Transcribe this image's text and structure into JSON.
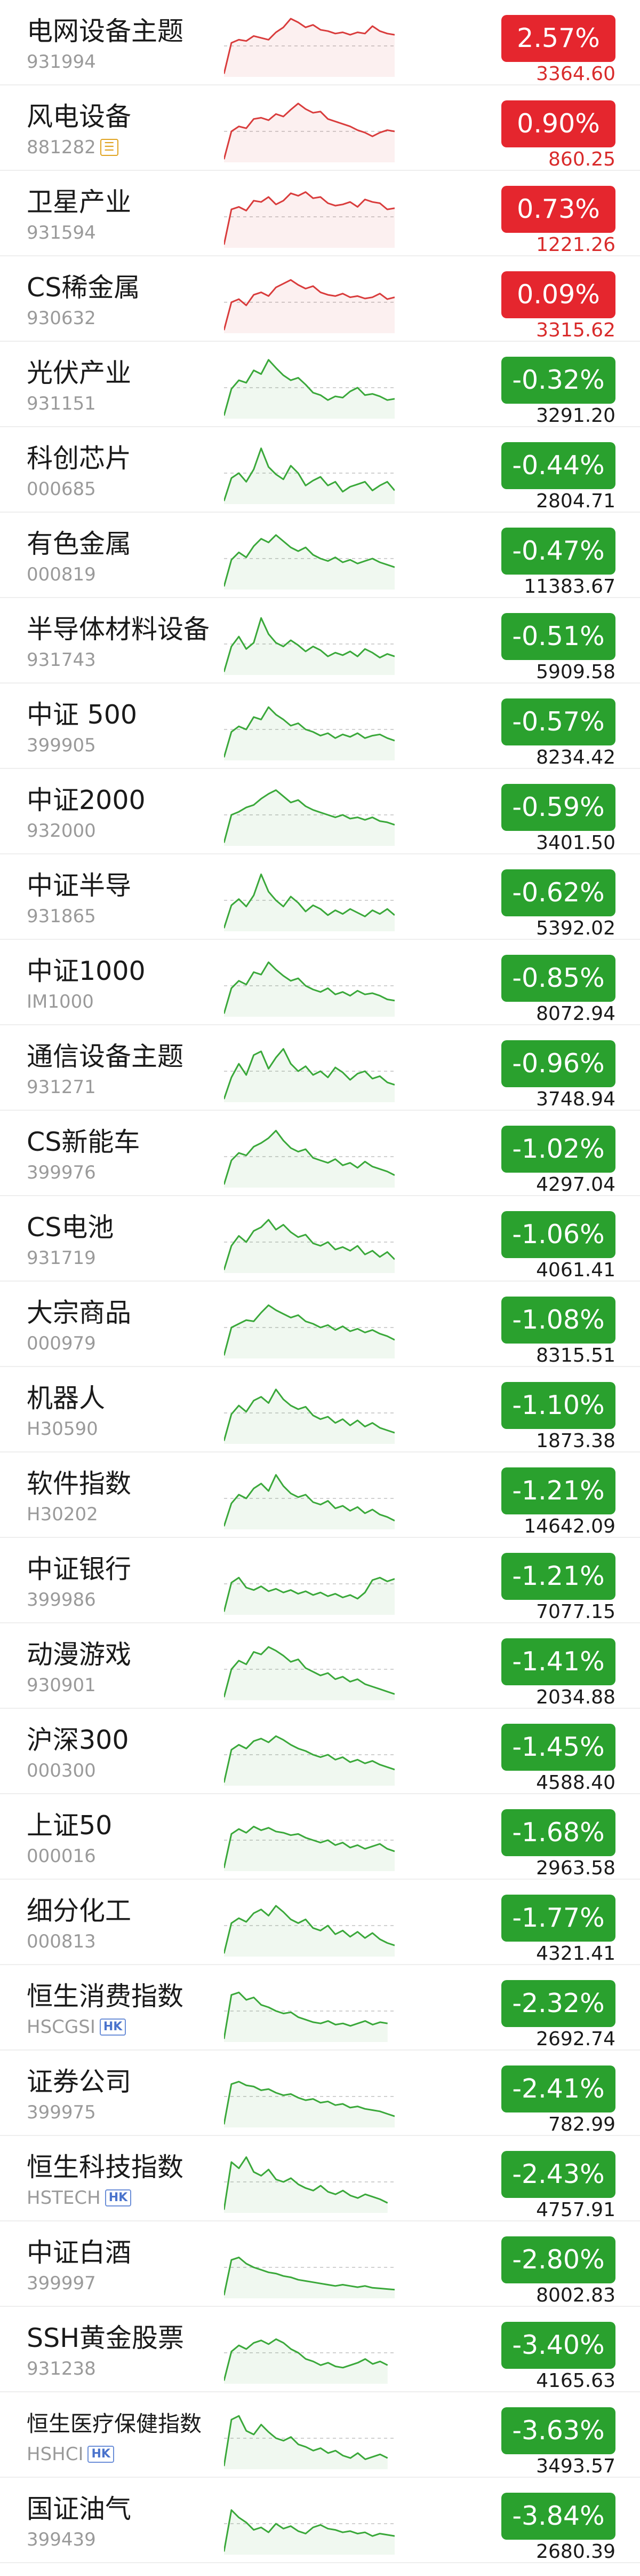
{
  "colors": {
    "up": "#e5262e",
    "down": "#2aa12e",
    "up_line": "#d93c3c",
    "down_line": "#3aa83a",
    "reference_line": "#d0d0d0"
  },
  "rows": [
    {
      "name": "电网设备主题",
      "code": "931994",
      "change": "2.57%",
      "price": "3364.60",
      "trend": "up",
      "series": [
        0.05,
        0.55,
        0.6,
        0.58,
        0.66,
        0.63,
        0.6,
        0.72,
        0.8,
        0.94,
        0.88,
        0.8,
        0.84,
        0.76,
        0.74,
        0.7,
        0.72,
        0.68,
        0.72,
        0.7,
        0.82,
        0.74,
        0.7,
        0.68
      ]
    },
    {
      "name": "风电设备",
      "code": "881282",
      "code_tag": "note-icon",
      "change": "0.90%",
      "price": "860.25",
      "trend": "up",
      "series": [
        0.05,
        0.5,
        0.58,
        0.55,
        0.7,
        0.72,
        0.68,
        0.78,
        0.74,
        0.85,
        0.95,
        0.86,
        0.8,
        0.82,
        0.7,
        0.66,
        0.62,
        0.58,
        0.52,
        0.48,
        0.42,
        0.48,
        0.52,
        0.5
      ]
    },
    {
      "name": "卫星产业",
      "code": "931594",
      "change": "0.73%",
      "price": "1221.26",
      "trend": "up",
      "series": [
        0.05,
        0.62,
        0.66,
        0.6,
        0.76,
        0.74,
        0.82,
        0.7,
        0.76,
        0.88,
        0.84,
        0.9,
        0.8,
        0.82,
        0.72,
        0.68,
        0.7,
        0.74,
        0.66,
        0.78,
        0.74,
        0.72,
        0.62,
        0.64
      ]
    },
    {
      "name": "CS稀金属",
      "code": "930632",
      "change": "0.09%",
      "price": "3315.62",
      "trend": "up",
      "series": [
        0.05,
        0.5,
        0.55,
        0.45,
        0.62,
        0.66,
        0.6,
        0.74,
        0.8,
        0.86,
        0.78,
        0.72,
        0.76,
        0.66,
        0.62,
        0.6,
        0.64,
        0.58,
        0.6,
        0.56,
        0.58,
        0.64,
        0.55,
        0.58
      ]
    },
    {
      "name": "光伏产业",
      "code": "931151",
      "change": "-0.32%",
      "price": "3291.20",
      "trend": "down",
      "series": [
        0.05,
        0.48,
        0.62,
        0.58,
        0.78,
        0.72,
        0.95,
        0.82,
        0.7,
        0.62,
        0.66,
        0.55,
        0.42,
        0.38,
        0.3,
        0.36,
        0.34,
        0.44,
        0.5,
        0.38,
        0.4,
        0.36,
        0.3,
        0.32
      ]
    },
    {
      "name": "科创芯片",
      "code": "000685",
      "change": "-0.44%",
      "price": "2804.71",
      "trend": "down",
      "series": [
        0.05,
        0.42,
        0.5,
        0.36,
        0.56,
        0.9,
        0.6,
        0.48,
        0.4,
        0.62,
        0.5,
        0.3,
        0.38,
        0.44,
        0.3,
        0.36,
        0.2,
        0.28,
        0.32,
        0.36,
        0.22,
        0.3,
        0.36,
        0.22
      ]
    },
    {
      "name": "有色金属",
      "code": "000819",
      "change": "-0.47%",
      "price": "11383.67",
      "trend": "down",
      "series": [
        0.05,
        0.48,
        0.6,
        0.52,
        0.7,
        0.82,
        0.76,
        0.88,
        0.78,
        0.68,
        0.62,
        0.68,
        0.56,
        0.5,
        0.46,
        0.52,
        0.44,
        0.48,
        0.42,
        0.46,
        0.5,
        0.44,
        0.4,
        0.36
      ]
    },
    {
      "name": "半导体材料设备",
      "code": "931743",
      "change": "-0.51%",
      "price": "5909.58",
      "trend": "down",
      "series": [
        0.05,
        0.46,
        0.62,
        0.42,
        0.52,
        0.92,
        0.66,
        0.52,
        0.46,
        0.56,
        0.48,
        0.38,
        0.46,
        0.4,
        0.3,
        0.36,
        0.32,
        0.38,
        0.3,
        0.42,
        0.36,
        0.28,
        0.34,
        0.3
      ]
    },
    {
      "name": "中证 500",
      "code": "399905",
      "change": "-0.57%",
      "price": "8234.42",
      "trend": "down",
      "series": [
        0.05,
        0.46,
        0.55,
        0.5,
        0.7,
        0.66,
        0.86,
        0.74,
        0.66,
        0.56,
        0.6,
        0.5,
        0.46,
        0.4,
        0.44,
        0.36,
        0.42,
        0.38,
        0.44,
        0.36,
        0.4,
        0.42,
        0.36,
        0.32
      ]
    },
    {
      "name": "中证2000",
      "code": "932000",
      "change": "-0.59%",
      "price": "3401.50",
      "trend": "down",
      "series": [
        0.05,
        0.5,
        0.55,
        0.62,
        0.66,
        0.76,
        0.84,
        0.9,
        0.8,
        0.7,
        0.74,
        0.64,
        0.58,
        0.54,
        0.5,
        0.46,
        0.5,
        0.44,
        0.46,
        0.42,
        0.46,
        0.4,
        0.38,
        0.34
      ]
    },
    {
      "name": "中证半导",
      "code": "931865",
      "change": "-0.62%",
      "price": "5392.02",
      "trend": "down",
      "series": [
        0.05,
        0.42,
        0.52,
        0.4,
        0.58,
        0.92,
        0.64,
        0.5,
        0.4,
        0.56,
        0.46,
        0.32,
        0.42,
        0.36,
        0.26,
        0.34,
        0.28,
        0.36,
        0.3,
        0.24,
        0.34,
        0.28,
        0.36,
        0.26
      ]
    },
    {
      "name": "中证1000",
      "code": "IM1000",
      "change": "-0.85%",
      "price": "8072.94",
      "trend": "down",
      "series": [
        0.05,
        0.46,
        0.58,
        0.52,
        0.72,
        0.68,
        0.88,
        0.76,
        0.66,
        0.58,
        0.62,
        0.5,
        0.44,
        0.4,
        0.46,
        0.36,
        0.4,
        0.34,
        0.42,
        0.36,
        0.38,
        0.34,
        0.28,
        0.26
      ]
    },
    {
      "name": "通信设备主题",
      "code": "931271",
      "change": "-0.96%",
      "price": "3748.94",
      "trend": "down",
      "series": [
        0.05,
        0.4,
        0.62,
        0.44,
        0.76,
        0.82,
        0.54,
        0.72,
        0.86,
        0.62,
        0.5,
        0.58,
        0.44,
        0.5,
        0.4,
        0.56,
        0.48,
        0.36,
        0.46,
        0.5,
        0.38,
        0.42,
        0.32,
        0.28
      ]
    },
    {
      "name": "CS新能车",
      "code": "399976",
      "change": "-1.02%",
      "price": "4297.04",
      "trend": "down",
      "series": [
        0.05,
        0.44,
        0.56,
        0.52,
        0.66,
        0.72,
        0.8,
        0.92,
        0.76,
        0.64,
        0.58,
        0.62,
        0.48,
        0.44,
        0.4,
        0.46,
        0.36,
        0.4,
        0.32,
        0.42,
        0.34,
        0.3,
        0.26,
        0.2
      ]
    },
    {
      "name": "CS电池",
      "code": "931719",
      "change": "-1.06%",
      "price": "4061.41",
      "trend": "down",
      "series": [
        0.05,
        0.44,
        0.6,
        0.5,
        0.68,
        0.74,
        0.86,
        0.7,
        0.78,
        0.66,
        0.58,
        0.62,
        0.48,
        0.44,
        0.5,
        0.38,
        0.42,
        0.36,
        0.44,
        0.3,
        0.36,
        0.26,
        0.34,
        0.22
      ]
    },
    {
      "name": "大宗商品",
      "code": "000979",
      "change": "-1.08%",
      "price": "8315.51",
      "trend": "down",
      "series": [
        0.05,
        0.5,
        0.56,
        0.62,
        0.6,
        0.74,
        0.86,
        0.78,
        0.72,
        0.66,
        0.7,
        0.6,
        0.56,
        0.5,
        0.54,
        0.46,
        0.52,
        0.44,
        0.48,
        0.42,
        0.46,
        0.4,
        0.36,
        0.3
      ]
    },
    {
      "name": "机器人",
      "code": "H30590",
      "change": "-1.10%",
      "price": "1873.38",
      "trend": "down",
      "series": [
        0.05,
        0.48,
        0.62,
        0.52,
        0.7,
        0.76,
        0.66,
        0.88,
        0.72,
        0.62,
        0.56,
        0.6,
        0.46,
        0.4,
        0.44,
        0.34,
        0.4,
        0.3,
        0.38,
        0.28,
        0.34,
        0.26,
        0.22,
        0.18
      ]
    },
    {
      "name": "软件指数",
      "code": "H30202",
      "change": "-1.21%",
      "price": "14642.09",
      "trend": "down",
      "series": [
        0.05,
        0.42,
        0.56,
        0.5,
        0.66,
        0.74,
        0.62,
        0.88,
        0.7,
        0.58,
        0.52,
        0.56,
        0.44,
        0.4,
        0.46,
        0.34,
        0.38,
        0.3,
        0.36,
        0.26,
        0.32,
        0.24,
        0.2,
        0.14
      ]
    },
    {
      "name": "中证银行",
      "code": "399986",
      "change": "-1.21%",
      "price": "7077.15",
      "trend": "down",
      "series": [
        0.05,
        0.52,
        0.6,
        0.44,
        0.4,
        0.46,
        0.38,
        0.42,
        0.36,
        0.4,
        0.34,
        0.38,
        0.32,
        0.36,
        0.3,
        0.34,
        0.28,
        0.32,
        0.26,
        0.36,
        0.56,
        0.6,
        0.54,
        0.58
      ]
    },
    {
      "name": "动漫游戏",
      "code": "930901",
      "change": "-1.41%",
      "price": "2034.88",
      "trend": "down",
      "series": [
        0.05,
        0.5,
        0.64,
        0.58,
        0.78,
        0.74,
        0.86,
        0.8,
        0.72,
        0.62,
        0.66,
        0.52,
        0.46,
        0.4,
        0.44,
        0.34,
        0.38,
        0.3,
        0.34,
        0.26,
        0.22,
        0.18,
        0.14,
        0.1
      ]
    },
    {
      "name": "沪深300",
      "code": "000300",
      "change": "-1.45%",
      "price": "4588.40",
      "trend": "down",
      "series": [
        0.05,
        0.58,
        0.66,
        0.6,
        0.72,
        0.76,
        0.7,
        0.8,
        0.74,
        0.66,
        0.6,
        0.56,
        0.5,
        0.46,
        0.5,
        0.42,
        0.46,
        0.38,
        0.42,
        0.36,
        0.4,
        0.34,
        0.3,
        0.26
      ]
    },
    {
      "name": "上证50",
      "code": "000016",
      "change": "-1.68%",
      "price": "2963.58",
      "trend": "down",
      "series": [
        0.05,
        0.6,
        0.68,
        0.62,
        0.72,
        0.66,
        0.7,
        0.64,
        0.62,
        0.58,
        0.6,
        0.54,
        0.5,
        0.46,
        0.5,
        0.42,
        0.46,
        0.38,
        0.42,
        0.36,
        0.4,
        0.44,
        0.36,
        0.32
      ]
    },
    {
      "name": "细分化工",
      "code": "000813",
      "change": "-1.77%",
      "price": "4321.41",
      "trend": "down",
      "series": [
        0.05,
        0.54,
        0.62,
        0.56,
        0.7,
        0.76,
        0.66,
        0.82,
        0.72,
        0.6,
        0.54,
        0.6,
        0.46,
        0.42,
        0.5,
        0.36,
        0.42,
        0.32,
        0.4,
        0.3,
        0.38,
        0.28,
        0.22,
        0.18
      ]
    },
    {
      "name": "恒生消费指数",
      "code": "HSCGSI",
      "code_tag": "HK",
      "change": "-2.32%",
      "price": "2692.74",
      "trend": "down",
      "series": [
        0.05,
        0.76,
        0.8,
        0.68,
        0.72,
        0.6,
        0.56,
        0.5,
        0.46,
        0.48,
        0.4,
        0.36,
        0.32,
        0.3,
        0.34,
        0.28,
        0.3,
        0.26,
        0.3,
        0.34,
        0.28,
        0.32,
        0.3
      ]
    },
    {
      "name": "证券公司",
      "code": "399975",
      "change": "-2.41%",
      "price": "782.99",
      "trend": "down",
      "series": [
        0.05,
        0.7,
        0.74,
        0.68,
        0.66,
        0.6,
        0.62,
        0.56,
        0.52,
        0.54,
        0.48,
        0.44,
        0.46,
        0.4,
        0.42,
        0.36,
        0.38,
        0.32,
        0.34,
        0.3,
        0.28,
        0.26,
        0.22,
        0.18
      ]
    },
    {
      "name": "恒生科技指数",
      "code": "HSTECH",
      "code_tag": "HK",
      "change": "-2.43%",
      "price": "4757.91",
      "trend": "down",
      "series": [
        0.05,
        0.82,
        0.72,
        0.9,
        0.66,
        0.6,
        0.7,
        0.54,
        0.5,
        0.56,
        0.46,
        0.4,
        0.36,
        0.44,
        0.34,
        0.3,
        0.36,
        0.28,
        0.24,
        0.3,
        0.26,
        0.22,
        0.16
      ]
    },
    {
      "name": "中证白酒",
      "code": "399997",
      "change": "-2.80%",
      "price": "8002.83",
      "trend": "down",
      "series": [
        0.05,
        0.62,
        0.66,
        0.56,
        0.5,
        0.46,
        0.42,
        0.4,
        0.36,
        0.34,
        0.3,
        0.28,
        0.26,
        0.24,
        0.22,
        0.2,
        0.22,
        0.2,
        0.18,
        0.2,
        0.17,
        0.16,
        0.15,
        0.14
      ]
    },
    {
      "name": "SSH黄金股票",
      "code": "931238",
      "change": "-3.40%",
      "price": "4165.63",
      "trend": "down",
      "series": [
        0.05,
        0.52,
        0.62,
        0.56,
        0.66,
        0.7,
        0.64,
        0.72,
        0.66,
        0.56,
        0.5,
        0.4,
        0.36,
        0.3,
        0.34,
        0.28,
        0.26,
        0.3,
        0.34,
        0.4,
        0.32,
        0.36,
        0.3
      ]
    },
    {
      "name": "恒生医疗保健指数",
      "code": "HSHCI",
      "code_tag": "HK",
      "change": "-3.63%",
      "price": "3493.57",
      "trend": "down",
      "series": [
        0.05,
        0.8,
        0.86,
        0.62,
        0.56,
        0.72,
        0.6,
        0.5,
        0.46,
        0.52,
        0.4,
        0.36,
        0.3,
        0.34,
        0.26,
        0.3,
        0.22,
        0.18,
        0.26,
        0.16,
        0.2,
        0.24,
        0.18
      ]
    },
    {
      "name": "国证油气",
      "code": "399439",
      "change": "-3.84%",
      "price": "2680.39",
      "trend": "down",
      "series": [
        0.05,
        0.72,
        0.6,
        0.52,
        0.4,
        0.44,
        0.36,
        0.5,
        0.42,
        0.46,
        0.38,
        0.34,
        0.44,
        0.48,
        0.42,
        0.4,
        0.36,
        0.38,
        0.34,
        0.36,
        0.3,
        0.34,
        0.32,
        0.3
      ]
    }
  ]
}
